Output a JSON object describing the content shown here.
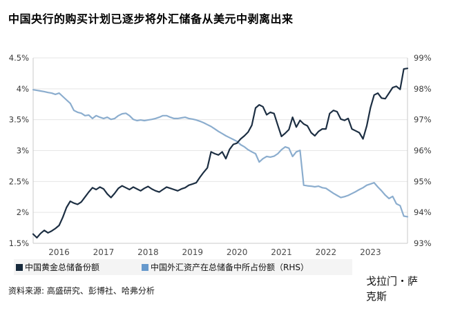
{
  "page": {
    "title": "中国央行的购买计划已逐步将外汇储备从美元中剥离出来",
    "source": "资料来源: 高盛研究、彭博社、哈弗分析",
    "brand": "戈拉门・萨克斯"
  },
  "legend": {
    "items": [
      {
        "label": "中国黄金总储备份额",
        "color": "#16293b"
      },
      {
        "label": "中国外汇资产在总储备中所占份额（RHS）",
        "color": "#6699cc"
      }
    ]
  },
  "colors": {
    "gold_line": "#1c2e42",
    "fx_line": "#8badce",
    "grid": "#e5e5e5",
    "axis": "#c9c9c9",
    "tick_text": "#3a3a3a",
    "year_text": "#4a4a4a"
  },
  "chart_data": {
    "type": "line",
    "title": "中国央行的购买计划已逐步将外汇储备从美元中剥离出来",
    "x_start": "2015-06",
    "x_end": "2023-11",
    "frequency": "monthly",
    "grid": true,
    "legend_position": "bottom",
    "x_year_ticks": [
      "2016",
      "2017",
      "2018",
      "2019",
      "2020",
      "2021",
      "2022",
      "2023"
    ],
    "left_axis": {
      "range": [
        1.5,
        4.5
      ],
      "values": [
        4.5,
        4,
        3.5,
        3,
        2.5,
        2,
        1.5
      ],
      "ticks": [
        "4.5%",
        "4%",
        "3.5%",
        "3%",
        "2.5%",
        "2%",
        "1.5%"
      ]
    },
    "right_axis": {
      "range": [
        93,
        99
      ],
      "values": [
        99,
        98,
        97,
        96,
        95,
        94,
        93
      ],
      "ticks": [
        "99%",
        "98%",
        "97%",
        "96%",
        "95%",
        "94%",
        "93%"
      ]
    },
    "series": [
      {
        "name": "中国黄金总储备份额",
        "axis": "left",
        "color": "#1c2e42",
        "values": [
          1.65,
          1.59,
          1.66,
          1.71,
          1.67,
          1.7,
          1.74,
          1.79,
          1.92,
          2.08,
          2.18,
          2.15,
          2.13,
          2.17,
          2.25,
          2.33,
          2.4,
          2.37,
          2.41,
          2.38,
          2.3,
          2.24,
          2.31,
          2.39,
          2.43,
          2.4,
          2.37,
          2.41,
          2.38,
          2.35,
          2.39,
          2.42,
          2.38,
          2.35,
          2.33,
          2.37,
          2.41,
          2.39,
          2.37,
          2.35,
          2.38,
          2.4,
          2.44,
          2.46,
          2.48,
          2.57,
          2.65,
          2.72,
          2.98,
          2.95,
          2.93,
          2.98,
          2.87,
          3.02,
          3.1,
          3.12,
          3.19,
          3.24,
          3.3,
          3.41,
          3.69,
          3.74,
          3.71,
          3.58,
          3.62,
          3.6,
          3.41,
          3.23,
          3.28,
          3.34,
          3.54,
          3.38,
          3.49,
          3.43,
          3.4,
          3.29,
          3.24,
          3.31,
          3.35,
          3.35,
          3.6,
          3.65,
          3.63,
          3.51,
          3.49,
          3.52,
          3.35,
          3.32,
          3.29,
          3.19,
          3.4,
          3.69,
          3.9,
          3.93,
          3.85,
          3.84,
          3.93,
          4.02,
          4.04,
          3.99,
          4.32,
          4.33
        ]
      },
      {
        "name": "中国外汇资产在总储备中所占份额（RHS）",
        "axis": "right",
        "color": "#8badce",
        "values": [
          97.97,
          97.95,
          97.93,
          97.91,
          97.88,
          97.86,
          97.82,
          97.86,
          97.75,
          97.64,
          97.53,
          97.3,
          97.24,
          97.21,
          97.13,
          97.15,
          97.04,
          97.13,
          97.08,
          97.04,
          97.08,
          97.01,
          97.04,
          97.13,
          97.19,
          97.21,
          97.13,
          97.01,
          96.97,
          96.99,
          96.97,
          96.99,
          97.01,
          97.04,
          97.08,
          97.13,
          97.13,
          97.08,
          97.04,
          97.04,
          97.06,
          97.08,
          97.04,
          97.02,
          96.99,
          96.95,
          96.9,
          96.84,
          96.78,
          96.7,
          96.62,
          96.55,
          96.48,
          96.42,
          96.36,
          96.3,
          96.19,
          96.12,
          96.03,
          95.96,
          95.9,
          95.63,
          95.74,
          95.81,
          95.79,
          95.82,
          95.9,
          96.03,
          96.12,
          96.08,
          95.81,
          95.96,
          96.01,
          94.88,
          94.86,
          94.85,
          94.83,
          94.85,
          94.8,
          94.78,
          94.7,
          94.62,
          94.55,
          94.48,
          94.51,
          94.55,
          94.61,
          94.67,
          94.74,
          94.8,
          94.88,
          94.92,
          94.96,
          94.82,
          94.7,
          94.56,
          94.45,
          94.52,
          94.28,
          94.22,
          93.88,
          93.86
        ]
      }
    ]
  }
}
